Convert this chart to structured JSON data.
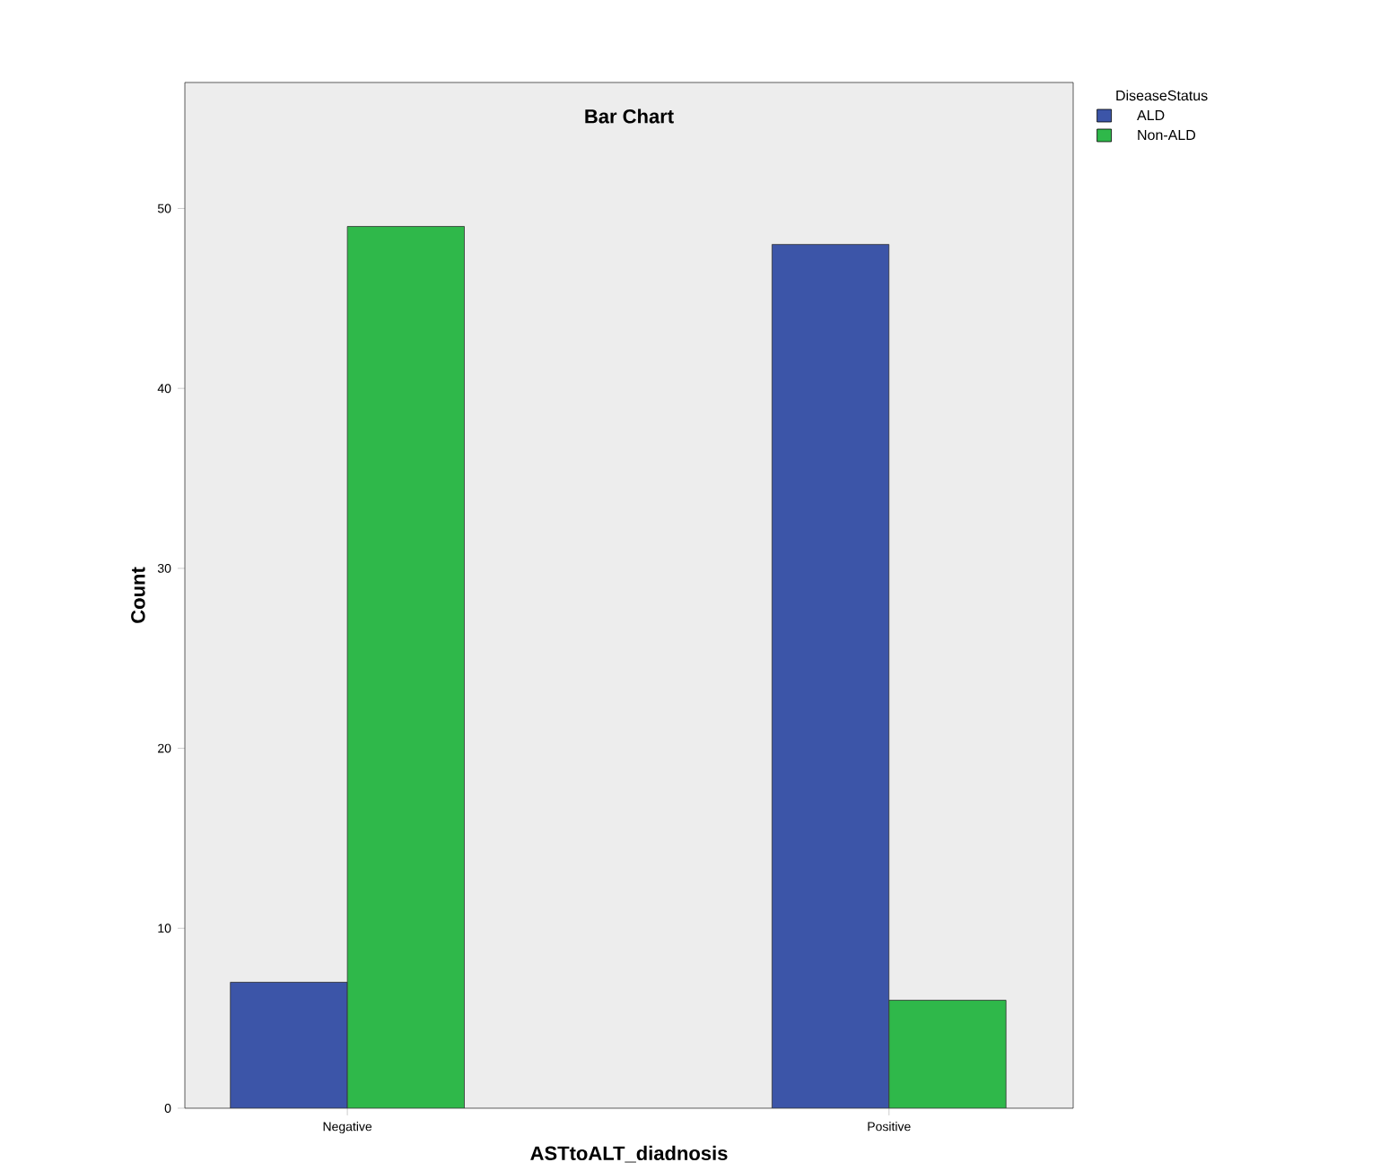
{
  "chart_data": {
    "type": "bar",
    "title": "Bar Chart",
    "xlabel": "ASTtoALT_diadnosis",
    "ylabel": "Count",
    "legend_title": "DiseaseStatus",
    "legend": "top right",
    "categories": [
      "Negative",
      "Positive"
    ],
    "series": [
      {
        "name": "ALD",
        "color": "#3c55a8",
        "values": [
          7,
          48
        ]
      },
      {
        "name": "Non-ALD",
        "color": "#2fb84a",
        "values": [
          49,
          6
        ]
      }
    ],
    "ylim": [
      0,
      57
    ],
    "yticks": [
      0,
      10,
      20,
      30,
      40,
      50
    ]
  }
}
